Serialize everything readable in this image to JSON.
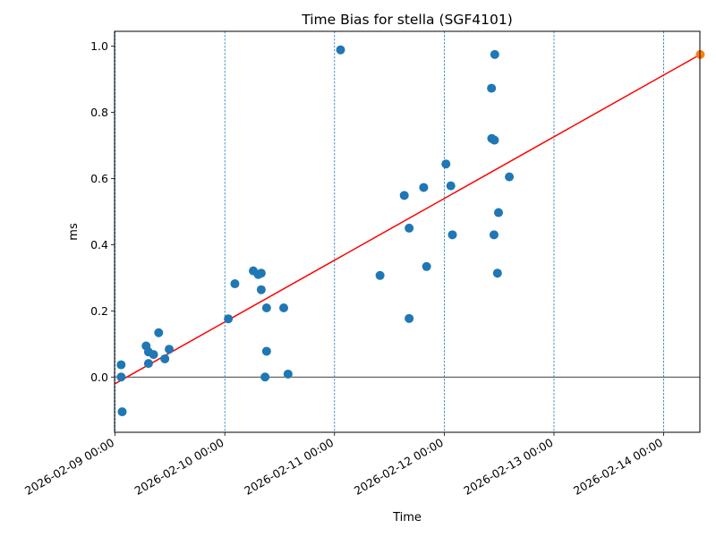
{
  "chart_data": {
    "type": "scatter",
    "title": "Time Bias for stella (SGF4101)",
    "xlabel": "Time",
    "ylabel": "ms",
    "xlim": [
      "2026-02-08 23:53",
      "2026-02-14 07:55"
    ],
    "ylim": [
      -0.167,
      1.045
    ],
    "x_ticks": [
      {
        "value": "2026-02-09 00:00",
        "label": "2026-02-09 00:00"
      },
      {
        "value": "2026-02-10 00:00",
        "label": "2026-02-10 00:00"
      },
      {
        "value": "2026-02-11 00:00",
        "label": "2026-02-11 00:00"
      },
      {
        "value": "2026-02-12 00:00",
        "label": "2026-02-12 00:00"
      },
      {
        "value": "2026-02-13 00:00",
        "label": "2026-02-13 00:00"
      },
      {
        "value": "2026-02-14 00:00",
        "label": "2026-02-14 00:00"
      }
    ],
    "y_ticks": [
      {
        "value": 0.0,
        "label": "0.0"
      },
      {
        "value": 0.2,
        "label": "0.2"
      },
      {
        "value": 0.4,
        "label": "0.4"
      },
      {
        "value": 0.6,
        "label": "0.6"
      },
      {
        "value": 0.8,
        "label": "0.8"
      },
      {
        "value": 1.0,
        "label": "1.0"
      }
    ],
    "vertical_gridlines": [
      "2026-02-09 00:00",
      "2026-02-10 00:00",
      "2026-02-11 00:00",
      "2026-02-12 00:00",
      "2026-02-13 00:00",
      "2026-02-14 00:00"
    ],
    "horizontal_reference_line": 0.0,
    "series": [
      {
        "type": "scatter",
        "color": "#1f77b4",
        "points": [
          {
            "x": "2026-02-09 01:19",
            "y": 0.037
          },
          {
            "x": "2026-02-09 01:19",
            "y": 0.0
          },
          {
            "x": "2026-02-09 01:33",
            "y": -0.105
          },
          {
            "x": "2026-02-09 06:47",
            "y": 0.094
          },
          {
            "x": "2026-02-09 07:18",
            "y": 0.076
          },
          {
            "x": "2026-02-09 07:18",
            "y": 0.041
          },
          {
            "x": "2026-02-09 08:25",
            "y": 0.068
          },
          {
            "x": "2026-02-09 09:32",
            "y": 0.134
          },
          {
            "x": "2026-02-09 10:53",
            "y": 0.055
          },
          {
            "x": "2026-02-09 11:50",
            "y": 0.084
          },
          {
            "x": "2026-02-10 00:46",
            "y": 0.176
          },
          {
            "x": "2026-02-10 02:12",
            "y": 0.282
          },
          {
            "x": "2026-02-10 06:14",
            "y": 0.321
          },
          {
            "x": "2026-02-10 07:18",
            "y": 0.31
          },
          {
            "x": "2026-02-10 07:58",
            "y": 0.314
          },
          {
            "x": "2026-02-10 07:58",
            "y": 0.264
          },
          {
            "x": "2026-02-10 09:08",
            "y": 0.209
          },
          {
            "x": "2026-02-10 09:08",
            "y": 0.078
          },
          {
            "x": "2026-02-10 08:48",
            "y": 0.0
          },
          {
            "x": "2026-02-10 12:53",
            "y": 0.209
          },
          {
            "x": "2026-02-10 13:50",
            "y": 0.009
          },
          {
            "x": "2026-02-11 01:19",
            "y": 0.989
          },
          {
            "x": "2026-02-11 09:57",
            "y": 0.307
          },
          {
            "x": "2026-02-11 15:15",
            "y": 0.549
          },
          {
            "x": "2026-02-11 16:19",
            "y": 0.45
          },
          {
            "x": "2026-02-11 16:19",
            "y": 0.177
          },
          {
            "x": "2026-02-11 19:30",
            "y": 0.573
          },
          {
            "x": "2026-02-11 20:08",
            "y": 0.334
          },
          {
            "x": "2026-02-12 00:22",
            "y": 0.644
          },
          {
            "x": "2026-02-12 01:26",
            "y": 0.578
          },
          {
            "x": "2026-02-12 01:47",
            "y": 0.43
          },
          {
            "x": "2026-02-12 10:20",
            "y": 0.873
          },
          {
            "x": "2026-02-12 10:23",
            "y": 0.721
          },
          {
            "x": "2026-02-12 11:03",
            "y": 0.975
          },
          {
            "x": "2026-02-12 10:59",
            "y": 0.716
          },
          {
            "x": "2026-02-12 11:52",
            "y": 0.497
          },
          {
            "x": "2026-02-12 10:53",
            "y": 0.43
          },
          {
            "x": "2026-02-12 11:38",
            "y": 0.314
          },
          {
            "x": "2026-02-12 14:14",
            "y": 0.605
          }
        ]
      },
      {
        "type": "scatter",
        "color": "#ff7f0e",
        "points": [
          {
            "x": "2026-02-14 08:00",
            "y": 0.975
          }
        ]
      },
      {
        "type": "line",
        "color": "#ff0000",
        "points": [
          {
            "x": "2026-02-09 00:00",
            "y": -0.02
          },
          {
            "x": "2026-02-14 08:00",
            "y": 0.975
          }
        ]
      }
    ]
  }
}
